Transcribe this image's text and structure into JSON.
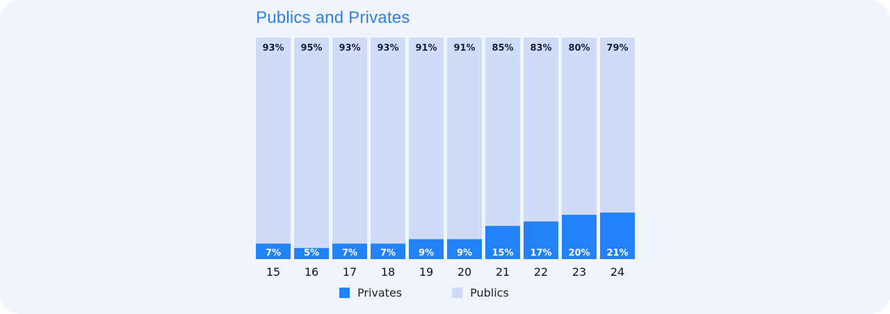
{
  "title": "Publics and Privates",
  "colors": {
    "privates": "#2182fb",
    "publics": "#cfdbf8",
    "label_light": "#ffffff",
    "label_dark": "#16213a",
    "card_bg": "#eff4fd"
  },
  "chart_data": {
    "type": "bar",
    "stacked": true,
    "normalized_percent": true,
    "title": "Publics and Privates",
    "categories": [
      "15",
      "16",
      "17",
      "18",
      "19",
      "20",
      "21",
      "22",
      "23",
      "24"
    ],
    "series": [
      {
        "name": "Privates",
        "values": [
          7,
          5,
          7,
          7,
          9,
          9,
          15,
          17,
          20,
          21
        ],
        "labels": [
          "7%",
          "5%",
          "7%",
          "7%",
          "9%",
          "9%",
          "15%",
          "17%",
          "20%",
          "21%"
        ]
      },
      {
        "name": "Publics",
        "values": [
          93,
          95,
          93,
          93,
          91,
          91,
          85,
          83,
          80,
          79
        ],
        "labels": [
          "93%",
          "95%",
          "93%",
          "93%",
          "91%",
          "91%",
          "85%",
          "83%",
          "80%",
          "79%"
        ]
      }
    ],
    "ylim": [
      0,
      100
    ],
    "grid": false,
    "legend": "bottom-center"
  },
  "legend": [
    {
      "label": "Privates"
    },
    {
      "label": "Publics"
    }
  ]
}
